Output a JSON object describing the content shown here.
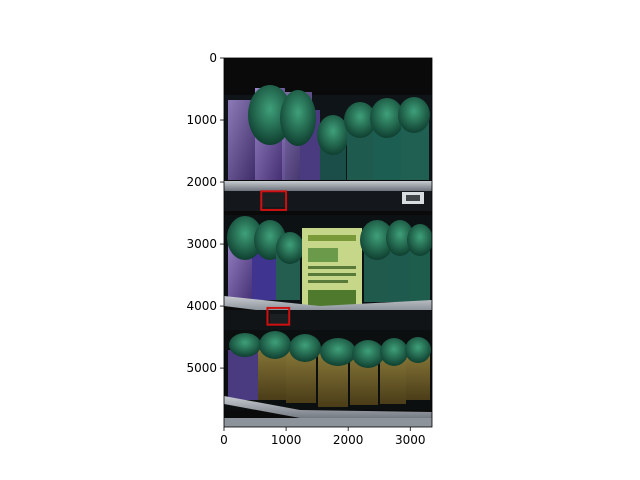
{
  "figure": {
    "image_content": "store shelf photo: potted herbs on three shelves with price tags",
    "colors": {
      "background": "#ffffff",
      "axis": "#000000",
      "box": "#d01010",
      "dark": "#0a0a0a",
      "shelf": "#9aa0a8",
      "herb_green": "#1f7a5a",
      "bag_purple": "#6c4fa0",
      "card": "#c7d78a"
    }
  },
  "axes": {
    "x_ticks": [
      "0",
      "1000",
      "2000",
      "3000"
    ],
    "y_ticks": [
      "0",
      "1000",
      "2000",
      "3000",
      "4000",
      "5000"
    ]
  },
  "boxes": [
    {
      "label": "price-tag",
      "x1": 600,
      "y1": 2150,
      "x2": 1000,
      "y2": 2450
    },
    {
      "label": "price-tag",
      "x1": 700,
      "y1": 4030,
      "x2": 1050,
      "y2": 4300
    }
  ],
  "image_extent": {
    "width": 3350,
    "height": 5950
  }
}
